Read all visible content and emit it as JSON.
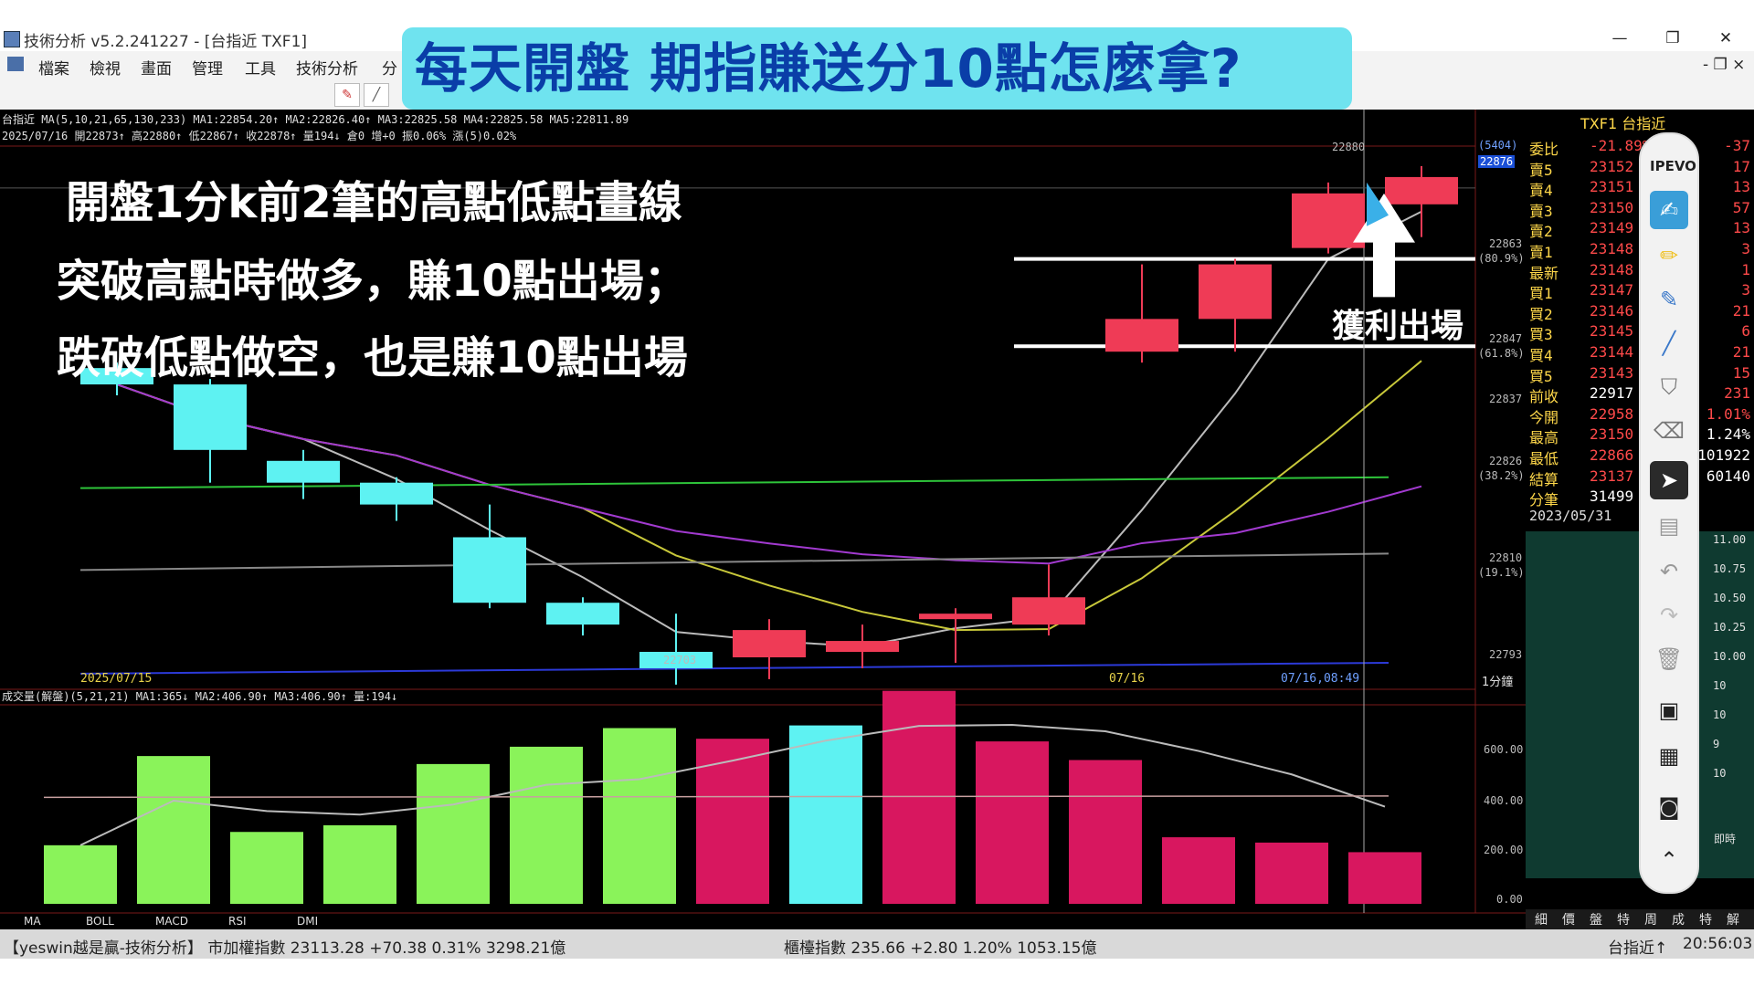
{
  "window": {
    "title": "技術分析 v5.2.241227 - [台指近 TXF1]",
    "min_label": "—",
    "max_label": "❐",
    "close_label": "✕"
  },
  "menu": {
    "items": [
      "檔案",
      "檢視",
      "畫面",
      "管理",
      "工具",
      "技術分析",
      "分"
    ],
    "right_label": "- ❐ ×"
  },
  "banner": {
    "text": "每天開盤  期指賺送分10點怎麼拿?"
  },
  "annotation": {
    "line1": "開盤1分k前2筆的高點低點畫線",
    "line2": "突破高點時做多，賺10點出場；",
    "line3": "跌破低點做空，也是賺10點出場",
    "exit_label": "獲利出場"
  },
  "chart_header": {
    "line1": "台指近 MA(5,10,21,65,130,233) MA1:22854.20↑ MA2:22826.40↑ MA3:22825.58 MA4:22825.58 MA5:22811.89",
    "line2": "2025/07/16 開22873↑ 高22880↑ 低22867↑ 收22878↑ 量194↓ 倉0 增+0 振0.06% 漲(5)0.02%"
  },
  "volume_header": "成交量(解盤)(5,21,21) MA1:365↓ MA2:406.90↑ MA3:406.90↑ 量:194↓",
  "x_labels": {
    "left_date": "2025/07/15",
    "mid_date": "07/16",
    "cursor_time": "07/16,08:49",
    "period": "1分鐘"
  },
  "price_axis": {
    "cursor_badge_top": "(5404)",
    "cursor_badge_bottom": "22876",
    "labels": [
      {
        "value": "22863",
        "pct": "(80.9%)"
      },
      {
        "value": "22847",
        "pct": "(61.8%)"
      },
      {
        "value": "22837",
        "pct": ""
      },
      {
        "value": "22826",
        "pct": "(38.2%)"
      },
      {
        "value": "22810",
        "pct": "(19.1%)"
      },
      {
        "value": "22793",
        "pct": ""
      }
    ],
    "high_mark": "22880",
    "low_mark": "22703"
  },
  "volume_axis": [
    "600.00",
    "400.00",
    "200.00",
    "0.00"
  ],
  "indicator_tabs": [
    "MA",
    "BOLL",
    "MACD",
    "RSI",
    "DMI"
  ],
  "chart_data": {
    "type": "bar",
    "candles": [
      {
        "o": 22843,
        "c": 22840,
        "h": 22844,
        "l": 22838,
        "color": "cyan"
      },
      {
        "o": 22840,
        "c": 22828,
        "h": 22841,
        "l": 22822,
        "color": "cyan"
      },
      {
        "o": 22826,
        "c": 22822,
        "h": 22828,
        "l": 22819,
        "color": "cyan"
      },
      {
        "o": 22822,
        "c": 22818,
        "h": 22823,
        "l": 22815,
        "color": "cyan"
      },
      {
        "o": 22812,
        "c": 22800,
        "h": 22818,
        "l": 22799,
        "color": "cyan"
      },
      {
        "o": 22800,
        "c": 22796,
        "h": 22801,
        "l": 22794,
        "color": "cyan"
      },
      {
        "o": 22791,
        "c": 22788,
        "h": 22798,
        "l": 22785,
        "color": "cyan"
      },
      {
        "o": 22790,
        "c": 22795,
        "h": 22797,
        "l": 22786,
        "color": "red"
      },
      {
        "o": 22791,
        "c": 22793,
        "h": 22796,
        "l": 22788,
        "color": "red"
      },
      {
        "o": 22797,
        "c": 22798,
        "h": 22799,
        "l": 22789,
        "color": "red"
      },
      {
        "o": 22796,
        "c": 22801,
        "h": 22807,
        "l": 22794,
        "color": "red"
      },
      {
        "o": 22846,
        "c": 22852,
        "h": 22862,
        "l": 22844,
        "color": "red"
      },
      {
        "o": 22852,
        "c": 22862,
        "h": 22863,
        "l": 22846,
        "color": "red"
      },
      {
        "o": 22865,
        "c": 22875,
        "h": 22877,
        "l": 22864,
        "color": "red"
      },
      {
        "o": 22873,
        "c": 22878,
        "h": 22880,
        "l": 22867,
        "color": "red"
      }
    ],
    "volume": [
      {
        "v": 220,
        "color": "green"
      },
      {
        "v": 555,
        "color": "green"
      },
      {
        "v": 270,
        "color": "green"
      },
      {
        "v": 295,
        "color": "green"
      },
      {
        "v": 525,
        "color": "green"
      },
      {
        "v": 590,
        "color": "green"
      },
      {
        "v": 660,
        "color": "green"
      },
      {
        "v": 620,
        "color": "magenta"
      },
      {
        "v": 670,
        "color": "cyan"
      },
      {
        "v": 800,
        "color": "magenta"
      },
      {
        "v": 610,
        "color": "magenta"
      },
      {
        "v": 540,
        "color": "magenta"
      },
      {
        "v": 250,
        "color": "magenta"
      },
      {
        "v": 230,
        "color": "magenta"
      },
      {
        "v": 194,
        "color": "magenta"
      }
    ],
    "ylim": [
      22790,
      22882
    ],
    "volume_ylim": [
      0,
      720
    ],
    "breakout_high": 22863,
    "breakdown_low": 22847
  },
  "quote_panel": {
    "title": "TXF1 台指近",
    "rows": [
      {
        "label": "委比",
        "value": "-21.89%",
        "qty": "-37"
      },
      {
        "label": "賣5",
        "value": "23152",
        "qty": "17"
      },
      {
        "label": "賣4",
        "value": "23151",
        "qty": "13"
      },
      {
        "label": "賣3",
        "value": "23150",
        "qty": "57"
      },
      {
        "label": "賣2",
        "value": "23149",
        "qty": "13"
      },
      {
        "label": "賣1",
        "value": "23148",
        "qty": "3"
      },
      {
        "label": "最新",
        "value": "23148",
        "qty": "1"
      },
      {
        "label": "買1",
        "value": "23147",
        "qty": "3"
      },
      {
        "label": "買2",
        "value": "23146",
        "qty": "21"
      },
      {
        "label": "買3",
        "value": "23145",
        "qty": "6"
      },
      {
        "label": "買4",
        "value": "23144",
        "qty": "21"
      },
      {
        "label": "買5",
        "value": "23143",
        "qty": "15"
      },
      {
        "label": "前收",
        "value": "22917",
        "qty": "231"
      },
      {
        "label": "今開",
        "value": "22958",
        "qty": "1.01%"
      },
      {
        "label": "最高",
        "value": "23150",
        "qty": "1.24%"
      },
      {
        "label": "最低",
        "value": "22866",
        "qty": "101922"
      },
      {
        "label": "結算",
        "value": "23137",
        "qty": "60140"
      },
      {
        "label": "分筆",
        "value": "31499",
        "qty": ""
      }
    ],
    "date": "2023/05/31",
    "tick_labels": [
      "11.00",
      "10.75",
      "10.50",
      "10.25",
      "10.00",
      "10",
      "10",
      "9",
      "10"
    ],
    "footer_tabs": [
      "細",
      "價",
      "盤",
      "特",
      "周",
      "成",
      "特",
      "解"
    ],
    "side_label": "即時"
  },
  "ipevo": {
    "title": "IPEVO"
  },
  "status": {
    "left": "【yeswin越是贏-技術分析】 市加權指數 23113.28 +70.38 0.31% 3298.21億",
    "mid": "櫃檯指數 235.66 +2.80 1.20% 1053.15億",
    "right_symbol": "台指近↑",
    "clock": "20:56:03"
  },
  "colors": {
    "banner_bg": "#6fe3ef",
    "banner_text": "#0a3ea8",
    "candle_up": "#ef3b56",
    "candle_down": "#5ef2f2",
    "vol_green": "#8af35a",
    "vol_magenta": "#d8175f",
    "vol_cyan": "#5ef2f2"
  }
}
